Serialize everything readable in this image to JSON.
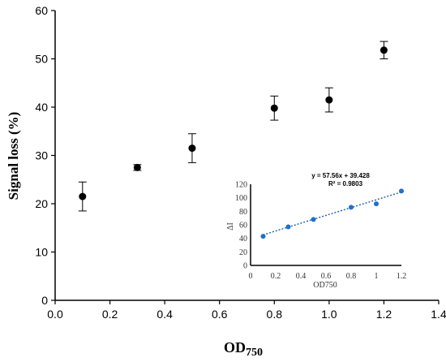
{
  "chart_data": [
    {
      "type": "scatter",
      "xlabel_main": "OD",
      "xlabel_sub": "750",
      "ylabel": "Signal loss (%)",
      "xlim": [
        0.0,
        1.4
      ],
      "ylim": [
        0,
        60
      ],
      "xticks": [
        "0.0",
        "0.2",
        "0.4",
        "0.6",
        "0.8",
        "1.0",
        "1.2",
        "1.4"
      ],
      "yticks": [
        "0",
        "10",
        "20",
        "30",
        "40",
        "50",
        "60"
      ],
      "grid": false,
      "marker_color": "#000000",
      "x": [
        0.1,
        0.3,
        0.5,
        0.8,
        1.0,
        1.2
      ],
      "y": [
        21.5,
        27.5,
        31.5,
        39.8,
        41.5,
        51.8
      ],
      "yerr": [
        3.0,
        0.6,
        3.0,
        2.5,
        2.5,
        1.8
      ]
    },
    {
      "type": "scatter",
      "role": "inset",
      "xlabel": "OD750",
      "ylabel": "ΔI",
      "xlim": [
        0,
        1.2
      ],
      "ylim": [
        0,
        120
      ],
      "xticks": [
        "0",
        "0.2",
        "0.4",
        "0.6",
        "0.8",
        "1",
        "1.2"
      ],
      "yticks": [
        "0",
        "20",
        "40",
        "60",
        "80",
        "100",
        "120"
      ],
      "marker_color": "#1f6fce",
      "trendline_color": "#1f5fb0",
      "x": [
        0.1,
        0.3,
        0.5,
        0.8,
        1.0,
        1.2
      ],
      "y": [
        43,
        57,
        68,
        86,
        91,
        110
      ],
      "trendline": {
        "slope": 57.56,
        "intercept": 39.428
      },
      "equation": "y = 57.56x + 39.428",
      "r2": "R² = 0.9803"
    }
  ]
}
